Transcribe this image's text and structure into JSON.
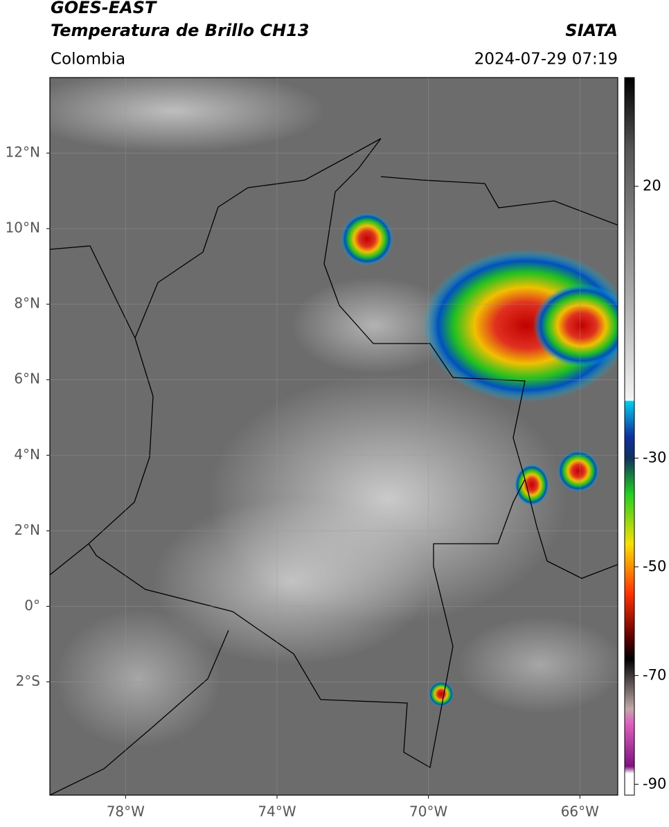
{
  "header": {
    "title": "GOES-EAST",
    "subtitle": "Temperatura de Brillo CH13",
    "source": "SIATA",
    "region": "Colombia",
    "datetime": "2024-07-29 07:19"
  },
  "map": {
    "xlim": [
      -80,
      -65
    ],
    "ylim": [
      -5,
      14
    ],
    "xticks": [
      {
        "value": -78,
        "label": "78°W"
      },
      {
        "value": -74,
        "label": "74°W"
      },
      {
        "value": -70,
        "label": "70°W"
      },
      {
        "value": -66,
        "label": "66°W"
      }
    ],
    "yticks": [
      {
        "value": 12,
        "label": "12°N"
      },
      {
        "value": 10,
        "label": "10°N"
      },
      {
        "value": 8,
        "label": "8°N"
      },
      {
        "value": 6,
        "label": "6°N"
      },
      {
        "value": 4,
        "label": "4°N"
      },
      {
        "value": 2,
        "label": "2°N"
      },
      {
        "value": 0,
        "label": "0°"
      },
      {
        "value": -2,
        "label": "2°S"
      }
    ],
    "grid": true
  },
  "colorbar": {
    "clim": [
      -92,
      40
    ],
    "ticks": [
      20,
      -30,
      -50,
      -70,
      -90
    ]
  }
}
